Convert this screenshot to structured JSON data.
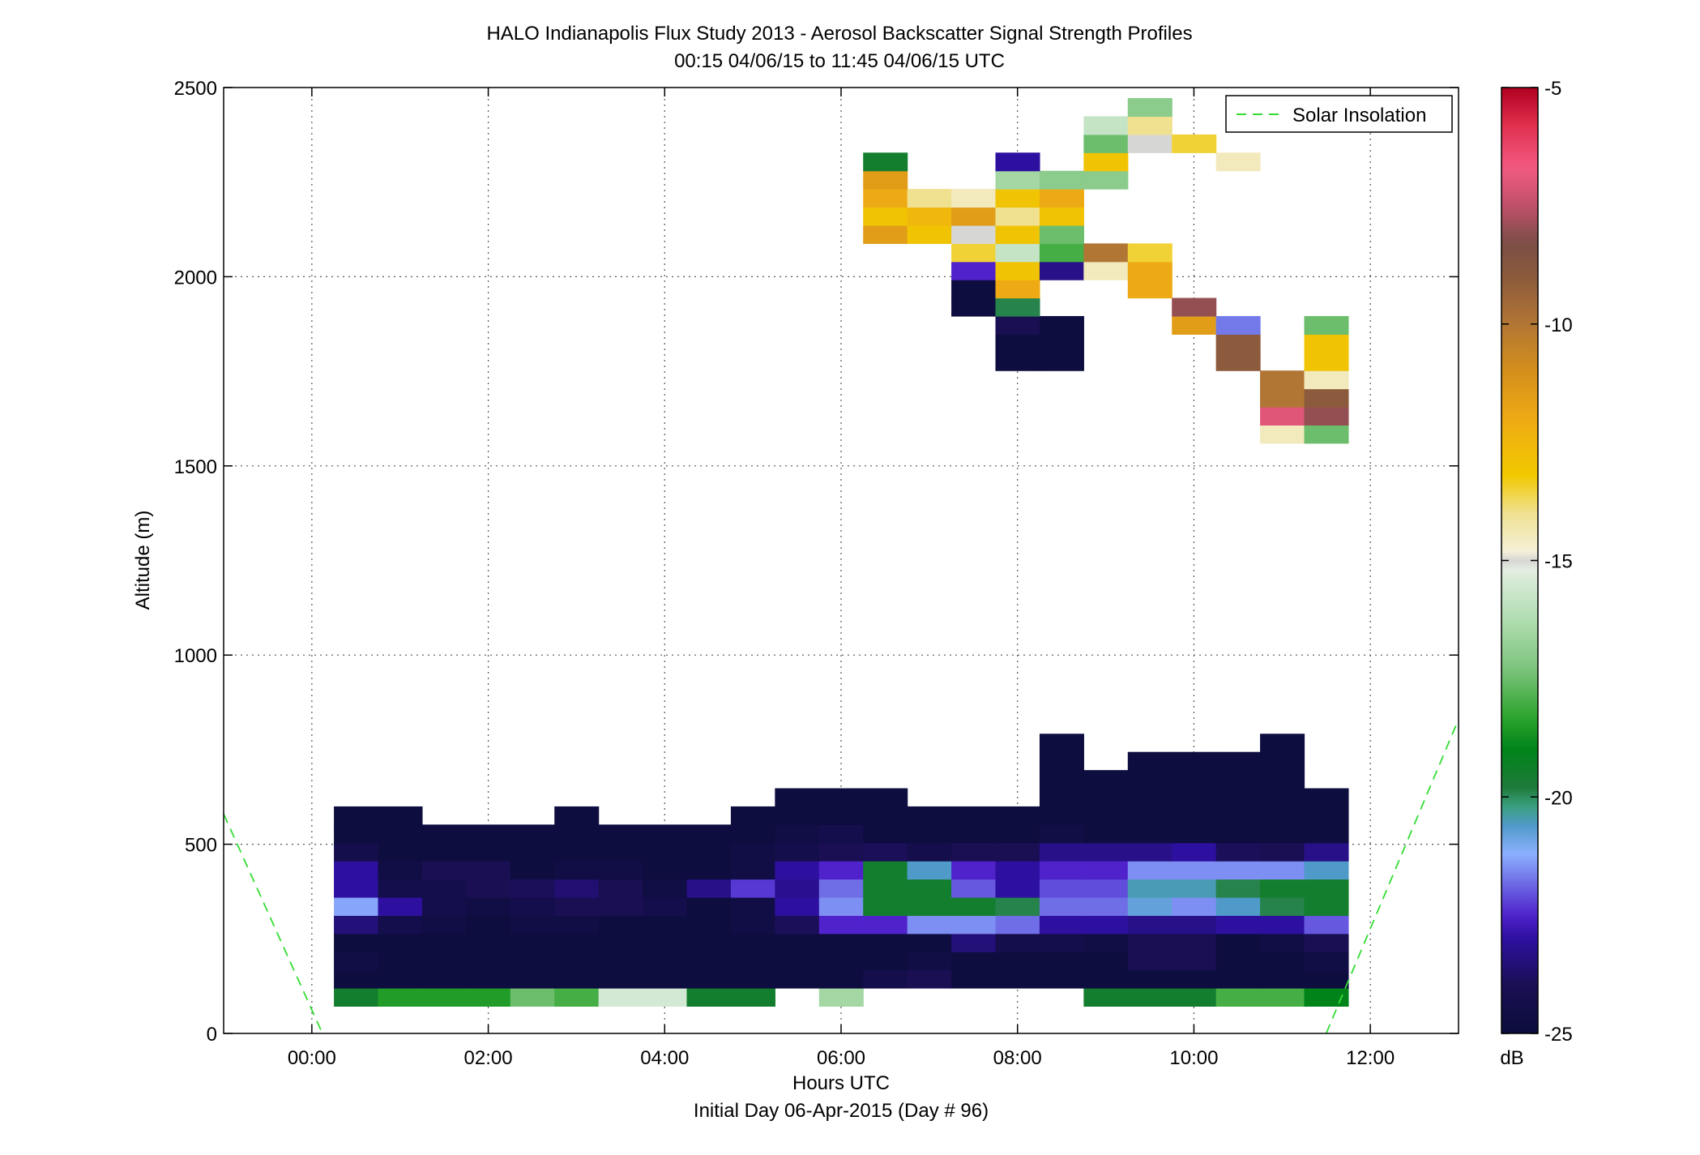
{
  "chart_data": {
    "type": "heatmap",
    "title": "HALO Indianapolis Flux Study 2013 - Aerosol Backscatter Signal Strength Profiles",
    "subtitle": "00:15 04/06/15 to 11:45 04/06/15  UTC",
    "xlabel": "Hours UTC",
    "xlabel2": "Initial Day 06-Apr-2015 (Day # 96)",
    "ylabel": "Altitude (m)",
    "xlim": [
      -1.0,
      13.0
    ],
    "ylim": [
      0,
      2500
    ],
    "x_ticks": [
      0,
      2,
      4,
      6,
      8,
      10,
      12
    ],
    "x_tick_labels": [
      "00:00",
      "02:00",
      "04:00",
      "06:00",
      "08:00",
      "10:00",
      "12:00"
    ],
    "y_ticks": [
      0,
      500,
      1000,
      1500,
      2000,
      2500
    ],
    "y_tick_labels": [
      "0",
      "500",
      "1000",
      "1500",
      "2000",
      "2500"
    ],
    "grid": true,
    "colorbar": {
      "label": "dB",
      "range": [
        -25,
        -5
      ],
      "ticks": [
        -25,
        -20,
        -15,
        -10,
        -5
      ],
      "tick_labels": [
        "-25",
        "-20",
        "-15",
        "-10",
        "-5"
      ]
    },
    "legend": {
      "position": "top-right",
      "entries": [
        "Solar Insolation"
      ]
    },
    "solar_insolation": {
      "color": "#33dd33",
      "left_segment": [
        [
          -1.0,
          580
        ],
        [
          0.12,
          0
        ]
      ],
      "right_segment": [
        [
          11.5,
          0
        ],
        [
          13.0,
          830
        ]
      ]
    },
    "cell": {
      "width_hours": 0.5,
      "height_m": 48
    },
    "time_centers": [
      0.5,
      1.0,
      1.5,
      2.0,
      2.5,
      3.0,
      3.5,
      4.0,
      4.5,
      5.0,
      5.5,
      6.0,
      6.5,
      7.0,
      7.5,
      8.0,
      8.5,
      9.0,
      9.5,
      10.0,
      10.5,
      11.0,
      11.5
    ],
    "altitudes": [
      96,
      144,
      192,
      240,
      288,
      336,
      384,
      432,
      480,
      528,
      576,
      624,
      672,
      720,
      768,
      1584,
      1632,
      1680,
      1728,
      1776,
      1824,
      1872,
      1920,
      1968,
      2016,
      2064,
      2112,
      2160,
      2208,
      2256,
      2304,
      2352,
      2400,
      2448
    ],
    "values_db": [
      [
        -19.5,
        -18.5,
        -18.5,
        -18.5,
        -17.5,
        -18,
        -15.5,
        -15.5,
        -19.5,
        -19.5,
        null,
        -16.5,
        null,
        null,
        null,
        null,
        null,
        -19.5,
        -19.5,
        -19.5,
        -18,
        -18,
        -19
      ],
      [
        -24.9,
        -24.9,
        -24.9,
        -24.9,
        -24.9,
        -24.9,
        -24.9,
        -24.9,
        -24.9,
        -24.9,
        -24.9,
        -24.9,
        -24.3,
        -24,
        -24.9,
        -24.9,
        -24.9,
        -24.9,
        -24.9,
        -24.9,
        -24.9,
        -24.9,
        -24.9
      ],
      [
        -24.6,
        -24.9,
        -24.9,
        -24.9,
        -24.9,
        -24.9,
        -24.9,
        -24.9,
        -24.9,
        -24.9,
        -24.9,
        -24.9,
        -24.9,
        -24.6,
        -24.9,
        -24.9,
        -24.9,
        -24.9,
        -24,
        -24,
        -24.9,
        -24.9,
        -24.6
      ],
      [
        -24.9,
        -24.9,
        -24.9,
        -24.9,
        -24.9,
        -24.9,
        -24.9,
        -24.9,
        -24.9,
        -24.9,
        -24.9,
        -24.9,
        -24.9,
        -24.9,
        -23.5,
        -24.3,
        -24.3,
        -24.6,
        -24,
        -24,
        -24.9,
        -24.6,
        -24
      ],
      [
        -23.5,
        -24.3,
        -24.6,
        -24.9,
        -24.6,
        -24.6,
        -24.9,
        -24.9,
        -24.9,
        -24.6,
        -23.9,
        -22.5,
        -22.5,
        -21.5,
        -21.5,
        -21.8,
        -23,
        -23,
        -23.3,
        -23.3,
        -23,
        -23,
        -22
      ],
      [
        -21.3,
        -23,
        -24.3,
        -24.6,
        -24.3,
        -24,
        -24,
        -24.3,
        -24.9,
        -24.6,
        -23,
        -21.5,
        -19.5,
        -19.5,
        -19.5,
        -19.9,
        -21.8,
        -21.8,
        -20.8,
        -21.5,
        -20.6,
        -19.9,
        -19.5
      ],
      [
        -23,
        -24.3,
        -24.3,
        -24,
        -23.9,
        -23.6,
        -24,
        -24.6,
        -23.3,
        -22.3,
        -23.2,
        -21.8,
        -19.5,
        -19.5,
        -22,
        -23,
        -22.1,
        -22.1,
        -20.5,
        -20.5,
        -19.9,
        -19.5,
        -19.5
      ],
      [
        -23,
        -24.6,
        -24,
        -24,
        -24.9,
        -24.6,
        -24.6,
        -24.9,
        -24.9,
        -24.6,
        -23,
        -22.5,
        -19.5,
        -20.6,
        -22.5,
        -23,
        -22.5,
        -22.5,
        -21.5,
        -21.5,
        -21.5,
        -21.5,
        -20.6
      ],
      [
        -24.3,
        -24.9,
        -24.9,
        -24.9,
        -24.9,
        -24.9,
        -24.9,
        -24.9,
        -24.9,
        -24.6,
        -24.3,
        -24,
        -23.9,
        -24.3,
        -24,
        -24,
        -23.3,
        -23.3,
        -23.3,
        -23,
        -23.9,
        -24,
        -23.3
      ],
      [
        -24.9,
        -24.9,
        -24.9,
        -24.9,
        -24.9,
        -24.9,
        -24.9,
        -24.9,
        -24.9,
        -24.9,
        -24.6,
        -24.3,
        -24.9,
        -24.9,
        -24.9,
        -24.9,
        -24.6,
        -24.9,
        -24.9,
        -24.9,
        -24.9,
        -24.9,
        -24.9
      ],
      [
        -24.9,
        -24.9,
        null,
        null,
        null,
        -24.9,
        null,
        null,
        null,
        -24.9,
        -24.9,
        -24.9,
        -24.9,
        -24.9,
        -24.9,
        -24.9,
        -24.9,
        -24.9,
        -24.9,
        -24.9,
        -24.9,
        -24.9,
        -24.9
      ],
      [
        null,
        null,
        null,
        null,
        null,
        null,
        null,
        null,
        null,
        null,
        -24.9,
        -24.9,
        -24.9,
        null,
        null,
        null,
        -24.9,
        -24.9,
        -24.9,
        -24.9,
        -24.9,
        -24.9,
        -24.9
      ],
      [
        null,
        null,
        null,
        null,
        null,
        null,
        null,
        null,
        null,
        null,
        null,
        null,
        null,
        null,
        null,
        null,
        -24.9,
        -24.9,
        -24.9,
        -24.9,
        -24.9,
        -24.9,
        null
      ],
      [
        null,
        null,
        null,
        null,
        null,
        null,
        null,
        null,
        null,
        null,
        null,
        null,
        null,
        null,
        null,
        null,
        -24.9,
        null,
        -24.9,
        -24.9,
        -24.9,
        -24.9,
        null
      ],
      [
        null,
        null,
        null,
        null,
        null,
        null,
        null,
        null,
        null,
        null,
        null,
        null,
        null,
        null,
        null,
        null,
        -24.9,
        null,
        null,
        null,
        null,
        -24.9,
        null
      ],
      [
        null,
        null,
        null,
        null,
        null,
        null,
        null,
        null,
        null,
        null,
        null,
        null,
        null,
        null,
        null,
        null,
        null,
        null,
        null,
        null,
        null,
        -14.5,
        -17.5
      ],
      [
        null,
        null,
        null,
        null,
        null,
        null,
        null,
        null,
        null,
        null,
        null,
        null,
        null,
        null,
        null,
        null,
        null,
        null,
        null,
        null,
        null,
        -7,
        -8
      ],
      [
        null,
        null,
        null,
        null,
        null,
        null,
        null,
        null,
        null,
        null,
        null,
        null,
        null,
        null,
        null,
        null,
        null,
        null,
        null,
        null,
        null,
        -10,
        -9
      ],
      [
        null,
        null,
        null,
        null,
        null,
        null,
        null,
        null,
        null,
        null,
        null,
        null,
        null,
        null,
        null,
        null,
        null,
        null,
        null,
        null,
        null,
        -10,
        -14.5
      ],
      [
        null,
        null,
        null,
        null,
        null,
        null,
        null,
        null,
        null,
        null,
        null,
        null,
        null,
        null,
        null,
        -24.9,
        -24.9,
        null,
        null,
        null,
        -9,
        null,
        -13
      ],
      [
        null,
        null,
        null,
        null,
        null,
        null,
        null,
        null,
        null,
        null,
        null,
        null,
        null,
        null,
        null,
        -24.9,
        -24.9,
        null,
        null,
        null,
        -9,
        null,
        -13
      ],
      [
        null,
        null,
        null,
        null,
        null,
        null,
        null,
        null,
        null,
        null,
        null,
        null,
        null,
        null,
        null,
        -24,
        -24.9,
        null,
        null,
        -11.5,
        -21.7,
        null,
        -17.5
      ],
      [
        null,
        null,
        null,
        null,
        null,
        null,
        null,
        null,
        null,
        null,
        null,
        null,
        null,
        null,
        -24.9,
        -19.9,
        null,
        null,
        null,
        -8,
        null,
        null,
        null
      ],
      [
        null,
        null,
        null,
        null,
        null,
        null,
        null,
        null,
        null,
        null,
        null,
        null,
        null,
        null,
        -24.9,
        -12,
        null,
        null,
        -12,
        null,
        null,
        null,
        null
      ],
      [
        null,
        null,
        null,
        null,
        null,
        null,
        null,
        null,
        null,
        null,
        null,
        null,
        null,
        null,
        -22.5,
        -13,
        -23.3,
        -14.5,
        -12,
        null,
        null,
        null,
        null
      ],
      [
        null,
        null,
        null,
        null,
        null,
        null,
        null,
        null,
        null,
        null,
        null,
        null,
        null,
        null,
        -13.5,
        -15.8,
        -18,
        -10,
        -13.5,
        null,
        null,
        null,
        null
      ],
      [
        null,
        null,
        null,
        null,
        null,
        null,
        null,
        null,
        null,
        null,
        null,
        null,
        -11.5,
        -13,
        -15,
        -13,
        -17.5,
        null,
        null,
        null,
        null,
        null,
        null
      ],
      [
        null,
        null,
        null,
        null,
        null,
        null,
        null,
        null,
        null,
        null,
        null,
        null,
        -13,
        -12.5,
        -11.5,
        -14,
        -13,
        null,
        null,
        null,
        null,
        null,
        null
      ],
      [
        null,
        null,
        null,
        null,
        null,
        null,
        null,
        null,
        null,
        null,
        null,
        null,
        -12,
        -14,
        -14.5,
        -13,
        -12,
        null,
        null,
        null,
        null,
        null,
        null
      ],
      [
        null,
        null,
        null,
        null,
        null,
        null,
        null,
        null,
        null,
        null,
        null,
        null,
        -11.5,
        null,
        null,
        -16.5,
        -17,
        -17,
        null,
        null,
        null,
        null,
        null
      ],
      [
        null,
        null,
        null,
        null,
        null,
        null,
        null,
        null,
        null,
        null,
        null,
        null,
        -19.5,
        null,
        null,
        -23,
        null,
        -13,
        null,
        null,
        -14.5,
        null,
        null
      ],
      [
        null,
        null,
        null,
        null,
        null,
        null,
        null,
        null,
        null,
        null,
        null,
        null,
        null,
        null,
        null,
        null,
        null,
        -17.5,
        -15,
        -13.5,
        null,
        null,
        null
      ],
      [
        null,
        null,
        null,
        null,
        null,
        null,
        null,
        null,
        null,
        null,
        null,
        null,
        null,
        null,
        null,
        null,
        null,
        -15.8,
        -14,
        null,
        null,
        null,
        null
      ],
      [
        null,
        null,
        null,
        null,
        null,
        null,
        null,
        null,
        null,
        null,
        null,
        null,
        null,
        null,
        null,
        null,
        null,
        null,
        -17,
        null,
        null,
        null,
        null
      ]
    ]
  }
}
